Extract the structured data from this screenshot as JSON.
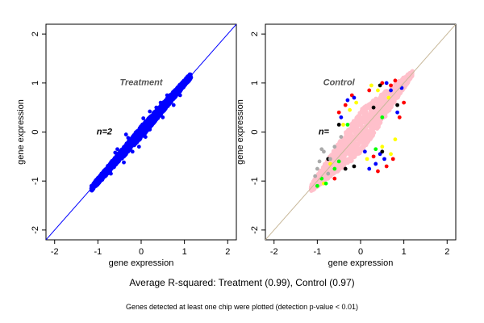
{
  "figure": {
    "summary": "Average R-squared: Treatment (0.99), Control (0.97)",
    "footnote": "Genes detected at least one chip were plotted (detection p-value < 0.01)"
  },
  "chart_data": [
    {
      "type": "scatter",
      "panel_label": "Treatment",
      "n_label": "n=2",
      "xlabel": "gene expression",
      "ylabel": "gene expression",
      "xlim": [
        -2.2,
        2.2
      ],
      "ylim": [
        -2.2,
        2.2
      ],
      "xticks": [
        "-2",
        "-1",
        "0",
        "1",
        "2"
      ],
      "yticks": [
        "-2",
        "-1",
        "0",
        "1",
        "2"
      ],
      "reference_line": {
        "slope": 1,
        "intercept": 0,
        "color": "#0000ff"
      },
      "cloud": {
        "x_range": [
          -1.15,
          1.15
        ],
        "spread": [
          0.05,
          0.12
        ],
        "color": "#0000ff"
      },
      "series": [
        {
          "color": "#0000ff",
          "points": [
            [
              -1.15,
              -1.1
            ],
            [
              -1.1,
              -1.05
            ],
            [
              -0.6,
              -0.42
            ],
            [
              -0.55,
              -0.35
            ],
            [
              -0.3,
              -0.12
            ],
            [
              0.2,
              0.42
            ],
            [
              0.35,
              0.5
            ],
            [
              0.6,
              0.75
            ],
            [
              0.2,
              0.05
            ],
            [
              0.1,
              -0.1
            ],
            [
              -0.2,
              -0.4
            ],
            [
              -0.05,
              -0.3
            ],
            [
              0.5,
              0.3
            ],
            [
              0.75,
              0.55
            ],
            [
              0.9,
              0.75
            ],
            [
              1.05,
              1.05
            ],
            [
              1.1,
              1.12
            ],
            [
              -0.4,
              -0.62
            ],
            [
              -0.7,
              -0.85
            ],
            [
              0.45,
              0.6
            ],
            [
              0.05,
              0.28
            ],
            [
              -0.35,
              -0.05
            ]
          ]
        }
      ]
    },
    {
      "type": "scatter",
      "panel_label": "Control",
      "n_label": "n=",
      "xlabel": "gene expression",
      "ylabel": "gene expression",
      "xlim": [
        -2.2,
        2.2
      ],
      "ylim": [
        -2.2,
        2.2
      ],
      "xticks": [
        "-2",
        "-1",
        "0",
        "1",
        "2"
      ],
      "yticks": [
        "-2",
        "-1",
        "0",
        "1",
        "2"
      ],
      "reference_line": {
        "slope": 1,
        "intercept": 0,
        "color": "#c8b89a"
      },
      "cloud": {
        "x_range": [
          -1.15,
          1.2
        ],
        "spread": [
          0.05,
          0.45
        ],
        "color": "#ffc0cb"
      },
      "series": [
        {
          "color": "#ff0000",
          "points": [
            [
              0.5,
              1.0
            ],
            [
              0.7,
              0.95
            ],
            [
              0.8,
              1.05
            ],
            [
              -0.5,
              0.4
            ],
            [
              0.3,
              -0.5
            ],
            [
              0.6,
              -0.7
            ],
            [
              0.9,
              0.3
            ],
            [
              -0.2,
              0.75
            ],
            [
              0.4,
              -0.8
            ],
            [
              -0.6,
              -0.95
            ],
            [
              0.2,
              0.85
            ],
            [
              0.75,
              -0.55
            ],
            [
              -0.35,
              0.55
            ],
            [
              1.0,
              0.6
            ]
          ]
        },
        {
          "color": "#0000ff",
          "points": [
            [
              0.55,
              -0.55
            ],
            [
              0.35,
              -0.65
            ],
            [
              0.7,
              0.85
            ],
            [
              -0.3,
              0.65
            ],
            [
              0.1,
              -0.4
            ],
            [
              -0.45,
              0.3
            ],
            [
              0.85,
              0.4
            ],
            [
              0.2,
              -0.75
            ],
            [
              0.6,
              1.0
            ],
            [
              -0.15,
              0.7
            ],
            [
              0.45,
              -0.45
            ],
            [
              0.95,
              0.9
            ]
          ]
        },
        {
          "color": "#ffff00",
          "points": [
            [
              -0.1,
              0.6
            ],
            [
              0.25,
              0.95
            ],
            [
              -0.7,
              -0.65
            ],
            [
              0.5,
              -0.3
            ],
            [
              -0.4,
              0.15
            ],
            [
              0.65,
              0.7
            ],
            [
              -0.85,
              -1.05
            ],
            [
              0.15,
              -0.55
            ],
            [
              0.8,
              -0.15
            ],
            [
              -0.25,
              0.45
            ],
            [
              0.4,
              0.85
            ],
            [
              0.7,
              -0.45
            ]
          ]
        },
        {
          "color": "#00ff00",
          "points": [
            [
              -0.8,
              -1.05
            ],
            [
              -1.0,
              -1.1
            ],
            [
              -0.5,
              -0.6
            ],
            [
              0.5,
              0.3
            ],
            [
              -0.6,
              -0.75
            ],
            [
              -0.9,
              -0.95
            ],
            [
              0.35,
              -0.35
            ],
            [
              -0.3,
              0.15
            ]
          ]
        },
        {
          "color": "#000000",
          "points": [
            [
              -0.75,
              -0.55
            ],
            [
              0.45,
              0.95
            ],
            [
              0.5,
              -0.4
            ],
            [
              -0.35,
              -0.75
            ],
            [
              0.3,
              0.5
            ],
            [
              -0.5,
              0.15
            ],
            [
              0.85,
              0.55
            ],
            [
              -0.15,
              -0.7
            ]
          ]
        },
        {
          "color": "#aaaaaa",
          "points": [
            [
              -0.95,
              -0.6
            ],
            [
              -1.05,
              -0.9
            ],
            [
              -0.85,
              -0.4
            ],
            [
              -0.6,
              -0.3
            ],
            [
              -0.45,
              -0.1
            ],
            [
              -1.0,
              -0.75
            ],
            [
              -0.7,
              -0.55
            ],
            [
              -0.75,
              -0.85
            ],
            [
              -0.9,
              -0.35
            ]
          ]
        }
      ]
    }
  ]
}
